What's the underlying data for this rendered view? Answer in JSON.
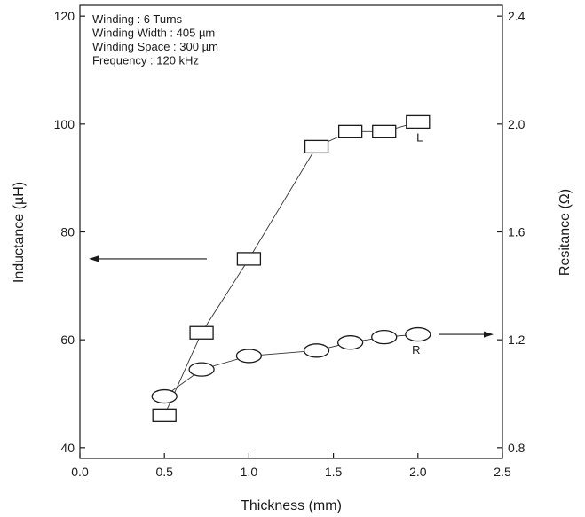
{
  "chart_data": {
    "type": "line",
    "xlabel": "Thickness (mm)",
    "ylabel_left": "Inductance (µH)",
    "ylabel_right": "Resitance (Ω)",
    "xlim": [
      0.0,
      2.5
    ],
    "ylim_left": [
      38,
      122
    ],
    "ylim_right": [
      0.76,
      2.44
    ],
    "x_ticks": [
      "0.0",
      "0.5",
      "1.0",
      "1.5",
      "2.0",
      "2.5"
    ],
    "y_left_ticks": [
      "40",
      "60",
      "80",
      "100",
      "120"
    ],
    "y_right_ticks": [
      "0.8",
      "1.2",
      "1.6",
      "2.0",
      "2.4"
    ],
    "grid": false,
    "annotations": [
      "Winding : 6 Turns",
      "Winding Width : 405 µm",
      "Winding Space : 300 µm",
      "Frequency : 120 kHz"
    ],
    "series": [
      {
        "name": "L",
        "axis": "left",
        "marker": "rectangle",
        "x": [
          0.5,
          0.72,
          1.0,
          1.4,
          1.6,
          1.8,
          2.0
        ],
        "y": [
          46,
          61.3,
          75,
          95.8,
          98.6,
          98.6,
          100.4
        ]
      },
      {
        "name": "R",
        "axis": "right",
        "marker": "ellipse",
        "x": [
          0.5,
          0.72,
          1.0,
          1.4,
          1.6,
          1.8,
          2.0
        ],
        "y": [
          0.99,
          1.09,
          1.14,
          1.16,
          1.19,
          1.21,
          1.22
        ]
      }
    ]
  }
}
